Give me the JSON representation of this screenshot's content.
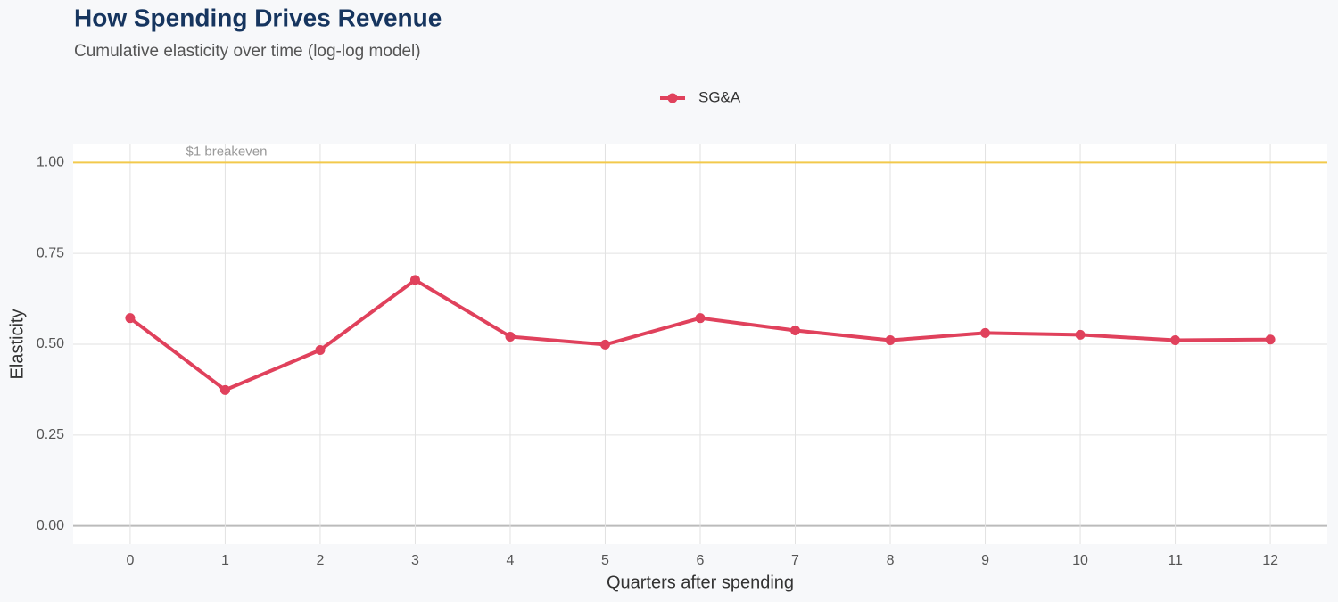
{
  "chart_data": {
    "type": "line",
    "title": "How Spending Drives Revenue",
    "subtitle": "Cumulative elasticity over time (log-log model)",
    "x_label": "Quarters after spending",
    "y_label": "Elasticity",
    "x": [
      0,
      1,
      2,
      3,
      4,
      5,
      6,
      7,
      8,
      9,
      10,
      11,
      12
    ],
    "series": [
      {
        "name": "SG&A",
        "color": "#e0415c",
        "values": [
          0.572,
          0.374,
          0.484,
          0.677,
          0.521,
          0.499,
          0.572,
          0.538,
          0.511,
          0.531,
          0.526,
          0.511,
          0.513
        ]
      }
    ],
    "xlim": [
      -0.6,
      12.6
    ],
    "xticks": [
      0,
      1,
      2,
      3,
      4,
      5,
      6,
      7,
      8,
      9,
      10,
      11,
      12
    ],
    "ylim": [
      -0.05,
      1.05
    ],
    "yticks": [
      {
        "value": 0,
        "label": "0.00"
      },
      0.25,
      {
        "value": 0.5,
        "label": "0.50"
      },
      0.75,
      {
        "value": 1,
        "label": "1.00"
      }
    ],
    "reference_line": {
      "value": 1,
      "label": "$1 breakeven",
      "color": "#f2c94c"
    },
    "grid": true,
    "legend": "top"
  }
}
